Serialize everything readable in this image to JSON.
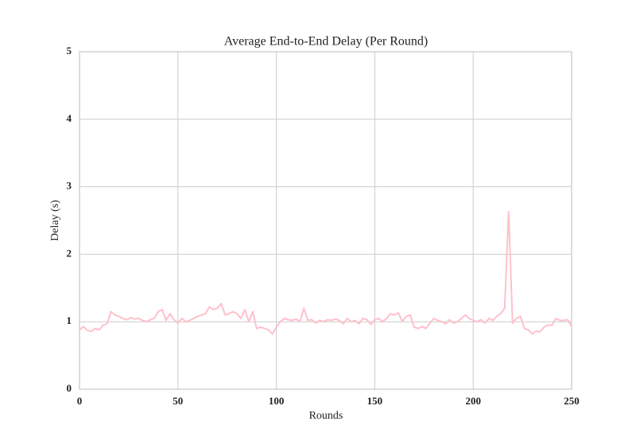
{
  "chart_data": {
    "type": "line",
    "title": "Average End-to-End Delay (Per Round)",
    "xlabel": "Rounds",
    "ylabel": "Delay (s)",
    "x": [
      0,
      2,
      4,
      6,
      8,
      10,
      12,
      14,
      16,
      18,
      20,
      22,
      24,
      26,
      28,
      30,
      32,
      34,
      36,
      38,
      40,
      42,
      44,
      46,
      48,
      50,
      52,
      54,
      56,
      58,
      60,
      62,
      64,
      66,
      68,
      70,
      72,
      74,
      76,
      78,
      80,
      82,
      84,
      86,
      88,
      90,
      92,
      94,
      96,
      98,
      100,
      102,
      104,
      106,
      108,
      110,
      112,
      114,
      116,
      118,
      120,
      122,
      124,
      126,
      128,
      130,
      132,
      134,
      136,
      138,
      140,
      142,
      144,
      146,
      148,
      150,
      152,
      154,
      156,
      158,
      160,
      162,
      164,
      166,
      168,
      170,
      172,
      174,
      176,
      178,
      180,
      182,
      184,
      186,
      188,
      190,
      192,
      194,
      196,
      198,
      200,
      202,
      204,
      206,
      208,
      210,
      212,
      214,
      216,
      218,
      220,
      222,
      224,
      226,
      228,
      230,
      232,
      234,
      236,
      238,
      240,
      242,
      244,
      246,
      248,
      250
    ],
    "values": [
      0.88,
      0.93,
      0.87,
      0.86,
      0.9,
      0.88,
      0.95,
      0.97,
      1.15,
      1.1,
      1.08,
      1.05,
      1.03,
      1.06,
      1.04,
      1.05,
      1.02,
      1.0,
      1.03,
      1.05,
      1.15,
      1.18,
      1.02,
      1.12,
      1.03,
      0.98,
      1.05,
      1.0,
      1.02,
      1.05,
      1.08,
      1.1,
      1.12,
      1.22,
      1.18,
      1.2,
      1.27,
      1.1,
      1.12,
      1.15,
      1.12,
      1.05,
      1.18,
      1.0,
      1.15,
      0.9,
      0.92,
      0.9,
      0.88,
      0.82,
      0.92,
      1.0,
      1.05,
      1.03,
      1.02,
      1.04,
      1.0,
      1.2,
      1.02,
      1.03,
      0.98,
      1.02,
      1.0,
      1.03,
      1.02,
      1.04,
      1.02,
      0.97,
      1.05,
      1.0,
      1.02,
      0.97,
      1.05,
      1.03,
      0.96,
      1.03,
      1.05,
      1.0,
      1.05,
      1.12,
      1.1,
      1.13,
      1.0,
      1.08,
      1.1,
      0.92,
      0.9,
      0.93,
      0.9,
      0.98,
      1.05,
      1.02,
      1.0,
      0.97,
      1.03,
      0.98,
      1.0,
      1.05,
      1.1,
      1.05,
      1.02,
      1.0,
      1.03,
      0.98,
      1.05,
      1.02,
      1.08,
      1.12,
      1.2,
      2.63,
      0.98,
      1.05,
      1.08,
      0.9,
      0.88,
      0.82,
      0.86,
      0.85,
      0.92,
      0.95,
      0.95,
      1.05,
      1.02,
      1.02,
      1.03,
      0.93
    ],
    "color": "#ffc0cb",
    "xlim": [
      0,
      250
    ],
    "ylim": [
      0,
      5
    ],
    "xticks": [
      0,
      50,
      100,
      150,
      200,
      250
    ],
    "yticks": [
      0,
      1,
      2,
      3,
      4,
      5
    ],
    "grid": true
  }
}
